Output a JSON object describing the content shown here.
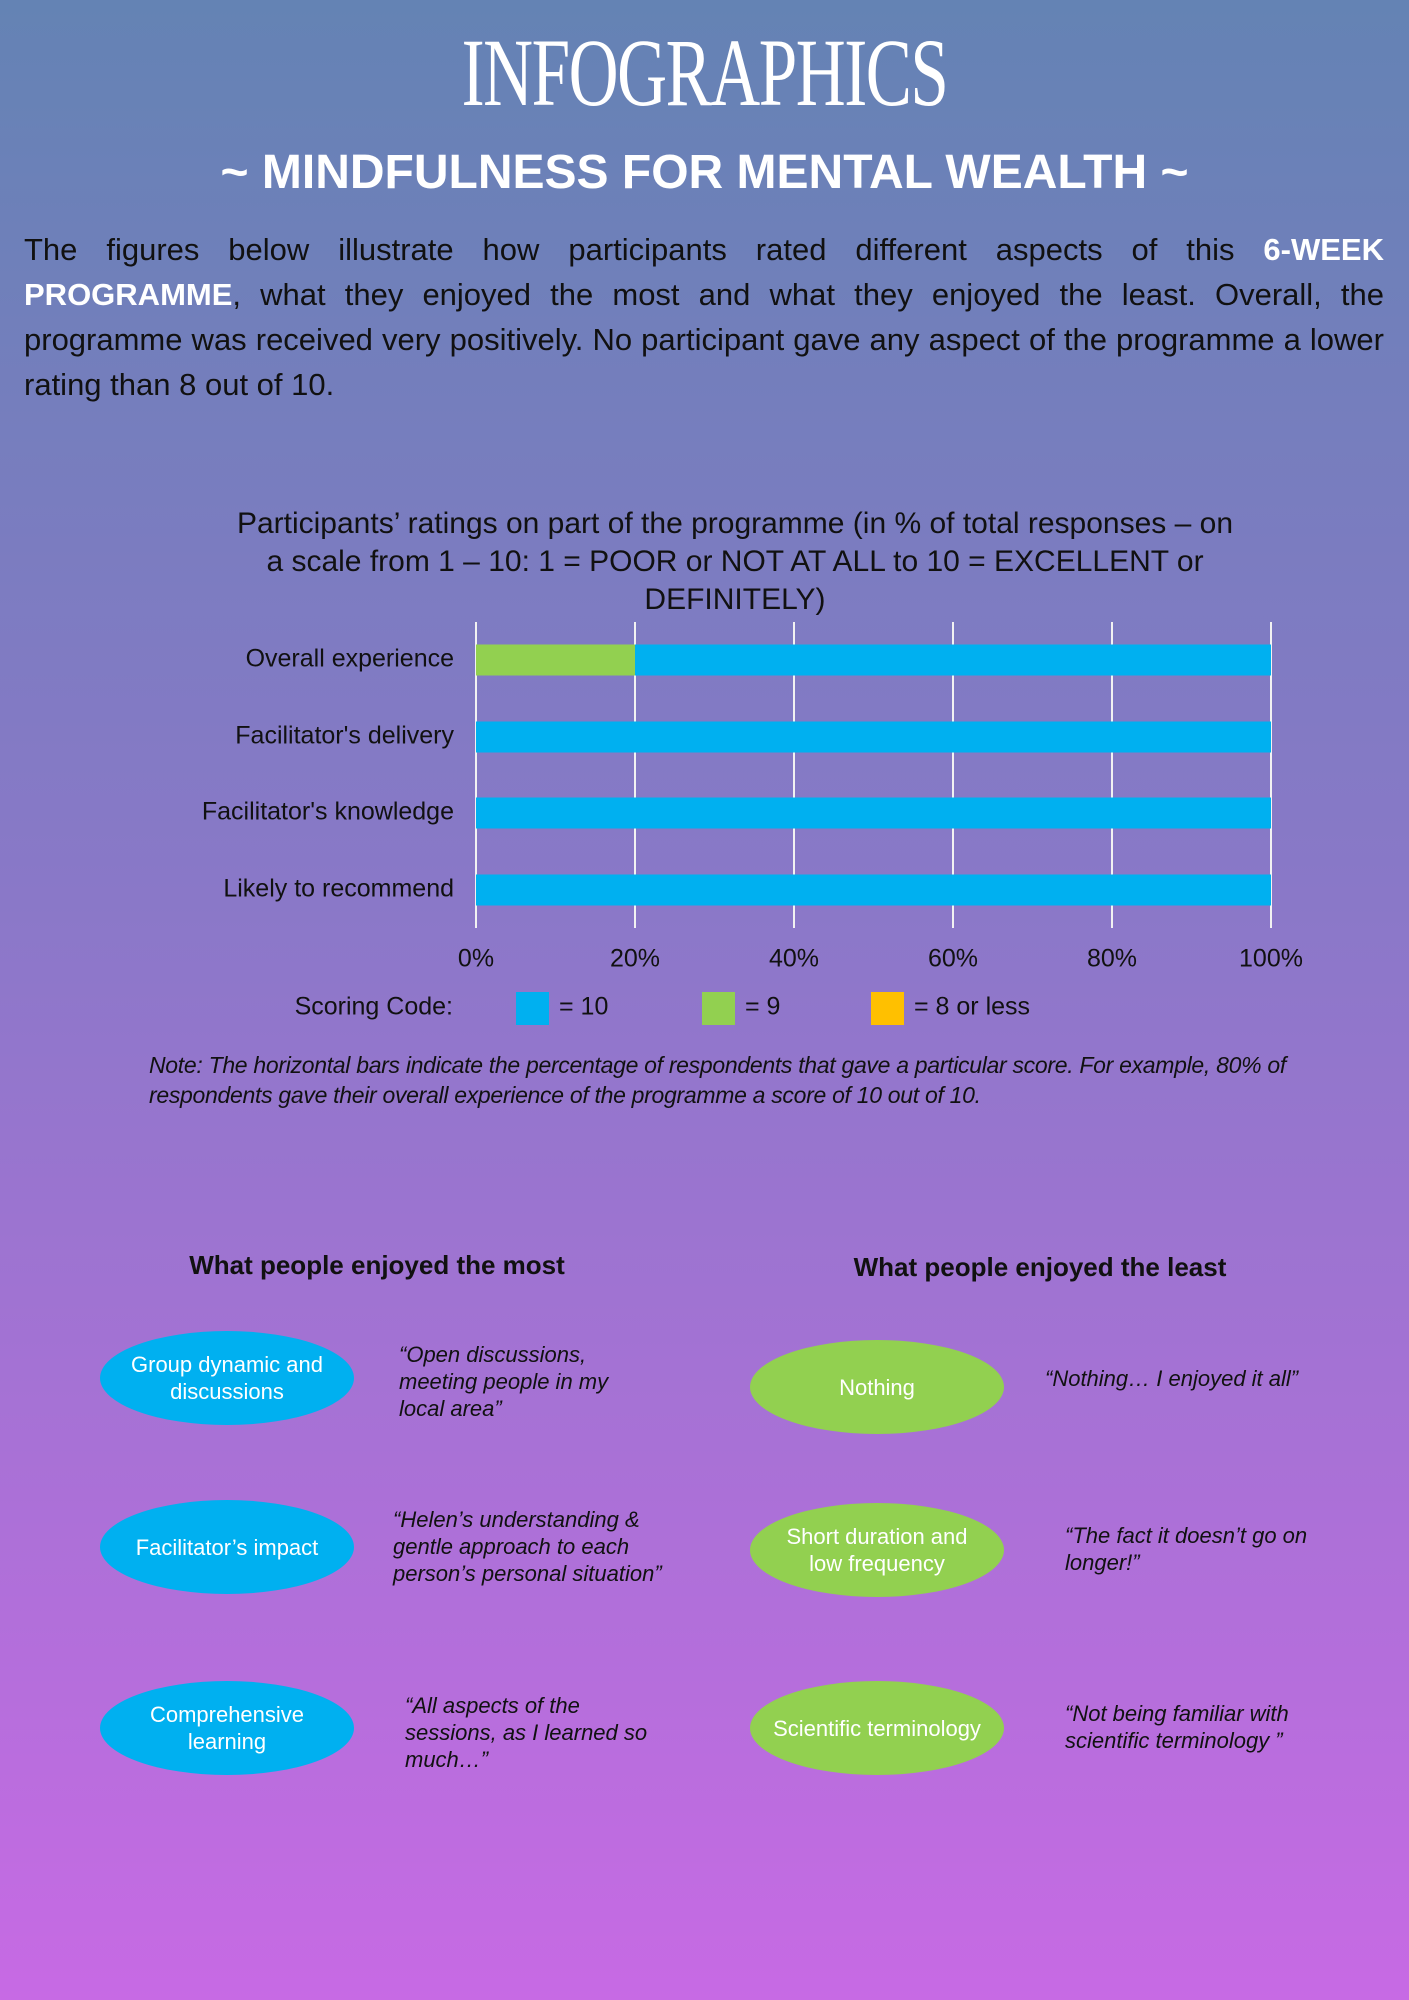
{
  "header": {
    "title": "INFOGRAPHICS",
    "subtitle": "~ MINDFULNESS FOR MENTAL WEALTH ~"
  },
  "intro": [
    "The figures below illustrate how participants rated different aspects of this ",
    "6-WEEK PROGRAMME",
    ", what they enjoyed the most and what they enjoyed the least. Overall, the programme was received very positively. No participant gave any aspect of the programme a lower rating than 8 out of 10."
  ],
  "chart_data": {
    "type": "stacked-bar-horizontal",
    "title": "Participants’ ratings on part of the programme (in % of total responses – on a scale from 1 – 10: 1 = POOR or NOT AT ALL to 10 = EXCELLENT or DEFINITELY)",
    "categories": [
      "Overall experience",
      "Facilitator's delivery",
      "Facilitator's knowledge",
      "Likely to recommend"
    ],
    "series": [
      {
        "name": "= 10",
        "color": "#00b0f0",
        "values": [
          80,
          100,
          100,
          100
        ]
      },
      {
        "name": "= 9",
        "color": "#92d050",
        "values": [
          20,
          0,
          0,
          0
        ]
      },
      {
        "name": "= 8 or less",
        "color": "#ffc000",
        "values": [
          0,
          0,
          0,
          0
        ]
      }
    ],
    "xlim": [
      0,
      100
    ],
    "xticks": [
      {
        "value": 0,
        "label": "0%"
      },
      {
        "value": 20,
        "label": "20%"
      },
      {
        "value": 40,
        "label": "40%"
      },
      {
        "value": 60,
        "label": "60%"
      },
      {
        "value": 80,
        "label": "80%"
      },
      {
        "value": 100,
        "label": "100%"
      }
    ],
    "grid": true,
    "legend_title": "Scoring Code:",
    "note": "Note: The horizontal bars indicate the percentage of respondents that gave a particular score. For example, 80% of respondents gave their overall experience of the programme a score of 10 out of 10."
  },
  "most": {
    "heading": "What people enjoyed the most",
    "items": [
      {
        "label": "Group dynamic and discussions",
        "quote": "“Open discussions, meeting people in my local area”"
      },
      {
        "label": "Facilitator’s impact",
        "quote": "“Helen’s understanding & gentle approach to each person’s personal situation”"
      },
      {
        "label": "Comprehensive learning",
        "quote": "“All aspects of the sessions, as I learned so much…”"
      }
    ]
  },
  "least": {
    "heading": "What people enjoyed the least",
    "items": [
      {
        "label": "Nothing",
        "quote": "“Nothing… I enjoyed it all”"
      },
      {
        "label": "Short duration and low frequency",
        "quote": "“The fact it doesn’t go on longer!”"
      },
      {
        "label": "Scientific terminology",
        "quote": "“Not being familiar with scientific terminology ”"
      }
    ]
  }
}
